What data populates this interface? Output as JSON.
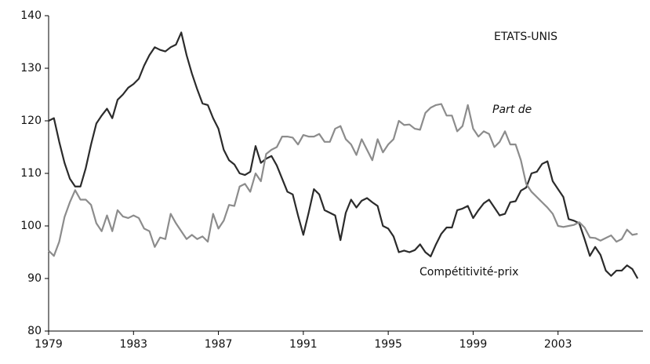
{
  "chart_data": {
    "type": "line",
    "annotation": "ETATS-UNIS",
    "x": [
      1979,
      1979.25,
      1979.5,
      1979.75,
      1980,
      1980.25,
      1980.5,
      1980.75,
      1981,
      1981.25,
      1981.5,
      1981.75,
      1982,
      1982.25,
      1982.5,
      1982.75,
      1983,
      1983.25,
      1983.5,
      1983.75,
      1984,
      1984.25,
      1984.5,
      1984.75,
      1985,
      1985.25,
      1985.5,
      1985.75,
      1986,
      1986.25,
      1986.5,
      1986.75,
      1987,
      1987.25,
      1987.5,
      1987.75,
      1988,
      1988.25,
      1988.5,
      1988.75,
      1989,
      1989.25,
      1989.5,
      1989.75,
      1990,
      1990.25,
      1990.5,
      1990.75,
      1991,
      1991.25,
      1991.5,
      1991.75,
      1992,
      1992.25,
      1992.5,
      1992.75,
      1993,
      1993.25,
      1993.5,
      1993.75,
      1994,
      1994.25,
      1994.5,
      1994.75,
      1995,
      1995.25,
      1995.5,
      1995.75,
      1996,
      1996.25,
      1996.5,
      1996.75,
      1997,
      1997.25,
      1997.5,
      1997.75,
      1998,
      1998.25,
      1998.5,
      1998.75,
      1999,
      1999.25,
      1999.5,
      1999.75,
      2000,
      2000.25,
      2000.5,
      2000.75,
      2001,
      2001.25,
      2001.5,
      2001.75,
      2002,
      2002.25,
      2002.5,
      2002.75,
      2003,
      2003.25,
      2003.5,
      2003.75,
      2004,
      2004.25,
      2004.5,
      2004.75,
      2005,
      2005.25,
      2005.5,
      2005.75,
      2006,
      2006.25,
      2006.5,
      2006.75
    ],
    "series": [
      {
        "name": "Compétitivité-prix",
        "color": "#2b2b2b",
        "values": [
          120,
          120.5,
          116,
          112,
          109,
          107.5,
          107.5,
          111,
          115.5,
          119.5,
          121,
          122.3,
          120.5,
          124,
          125,
          126.3,
          127,
          128,
          130.5,
          132.5,
          134,
          133.5,
          133.2,
          134,
          134.5,
          136.8,
          132.5,
          129,
          126,
          123.3,
          123,
          120.5,
          118.5,
          114.5,
          112.5,
          111.7,
          110,
          109.7,
          110.3,
          115.2,
          112,
          112.8,
          113.3,
          111.5,
          109,
          106.5,
          106,
          102,
          98.3,
          102.5,
          107,
          106,
          103,
          102.5,
          102,
          97.3,
          102.5,
          105,
          103.5,
          104.8,
          105.3,
          104.5,
          103.8,
          100,
          99.5,
          98,
          95,
          95.3,
          95,
          95.4,
          96.5,
          95,
          94.2,
          96.5,
          98.5,
          99.7,
          99.7,
          103,
          103.3,
          103.8,
          101.5,
          103,
          104.3,
          105,
          103.5,
          102,
          102.3,
          104.5,
          104.7,
          106.7,
          107.3,
          110,
          110.3,
          111.8,
          112.3,
          108.5,
          107,
          105.5,
          101.3,
          101,
          100.5,
          97.5,
          94.3,
          96,
          94.5,
          91.5,
          90.5,
          91.5,
          91.5,
          92.5,
          91.8,
          90
        ]
      },
      {
        "name": "Part de",
        "color": "#8c8c8c",
        "values": [
          95.3,
          94.3,
          97,
          101.7,
          104.5,
          106.8,
          105,
          105,
          104,
          100.5,
          99,
          102,
          99,
          103,
          101.8,
          101.5,
          102,
          101.5,
          99.5,
          99,
          96,
          97.8,
          97.5,
          102.3,
          100.5,
          99,
          97.5,
          98.3,
          97.5,
          98,
          97,
          102.3,
          99.5,
          101,
          104,
          103.8,
          107.5,
          108,
          106.5,
          110,
          108.5,
          113.7,
          114.5,
          115,
          117,
          117,
          116.8,
          115.5,
          117.3,
          117,
          117,
          117.5,
          116,
          116,
          118.5,
          119,
          116.5,
          115.5,
          113.5,
          116.5,
          114.5,
          112.5,
          116.5,
          114,
          115.5,
          116.5,
          120,
          119.2,
          119.3,
          118.5,
          118.3,
          121.5,
          122.5,
          123,
          123.2,
          121,
          121,
          118,
          119,
          123,
          118.5,
          117,
          118,
          117.5,
          115,
          116,
          118,
          115.5,
          115.5,
          112.5,
          108,
          106.5,
          105.5,
          104.5,
          103.5,
          102.3,
          100,
          99.8,
          100,
          100.2,
          100.7,
          99.7,
          97.8,
          97.7,
          97.2,
          97.7,
          98.2,
          97,
          97.5,
          99.3,
          98.3,
          98.5
        ]
      }
    ],
    "xlim": [
      1979,
      2007
    ],
    "xticks": [
      1979,
      1983,
      1987,
      1991,
      1995,
      1999,
      2003
    ],
    "ylim": [
      80,
      140
    ],
    "yticks": [
      80,
      90,
      100,
      110,
      120,
      130,
      140
    ]
  }
}
